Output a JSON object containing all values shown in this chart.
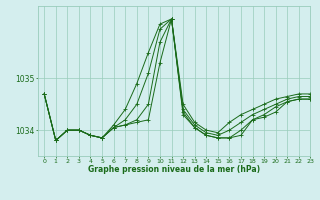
{
  "title": "Graphe pression niveau de la mer (hPa)",
  "bg_color": "#d4eeee",
  "grid_color": "#99ccbb",
  "line_color": "#1a6b1a",
  "xlim": [
    -0.5,
    23
  ],
  "ylim": [
    1033.5,
    1036.4
  ],
  "yticks": [
    1034,
    1035
  ],
  "xticks": [
    0,
    1,
    2,
    3,
    4,
    5,
    6,
    7,
    8,
    9,
    10,
    11,
    12,
    13,
    14,
    15,
    16,
    17,
    18,
    19,
    20,
    21,
    22,
    23
  ],
  "series": [
    [
      1034.7,
      1033.8,
      1034.0,
      1034.0,
      1033.9,
      1033.85,
      1034.05,
      1034.1,
      1034.15,
      1034.2,
      1035.3,
      1036.15,
      1034.3,
      1034.05,
      1033.9,
      1033.85,
      1033.85,
      1033.9,
      1034.2,
      1034.25,
      1034.35,
      1034.55,
      1034.6,
      1034.6
    ],
    [
      1034.7,
      1033.8,
      1034.0,
      1034.0,
      1033.9,
      1033.85,
      1034.05,
      1034.1,
      1034.2,
      1034.5,
      1035.7,
      1036.15,
      1034.35,
      1034.05,
      1033.9,
      1033.85,
      1033.85,
      1034.0,
      1034.2,
      1034.3,
      1034.45,
      1034.55,
      1034.6,
      1034.6
    ],
    [
      1034.7,
      1033.8,
      1034.0,
      1034.0,
      1033.9,
      1033.85,
      1034.05,
      1034.2,
      1034.5,
      1035.1,
      1035.95,
      1036.15,
      1034.4,
      1034.1,
      1033.95,
      1033.9,
      1034.0,
      1034.15,
      1034.3,
      1034.4,
      1034.5,
      1034.6,
      1034.65,
      1034.65
    ],
    [
      1034.7,
      1033.8,
      1034.0,
      1034.0,
      1033.9,
      1033.85,
      1034.1,
      1034.4,
      1034.9,
      1035.5,
      1036.05,
      1036.15,
      1034.5,
      1034.15,
      1034.0,
      1033.95,
      1034.15,
      1034.3,
      1034.4,
      1034.5,
      1034.6,
      1034.65,
      1034.7,
      1034.7
    ]
  ]
}
